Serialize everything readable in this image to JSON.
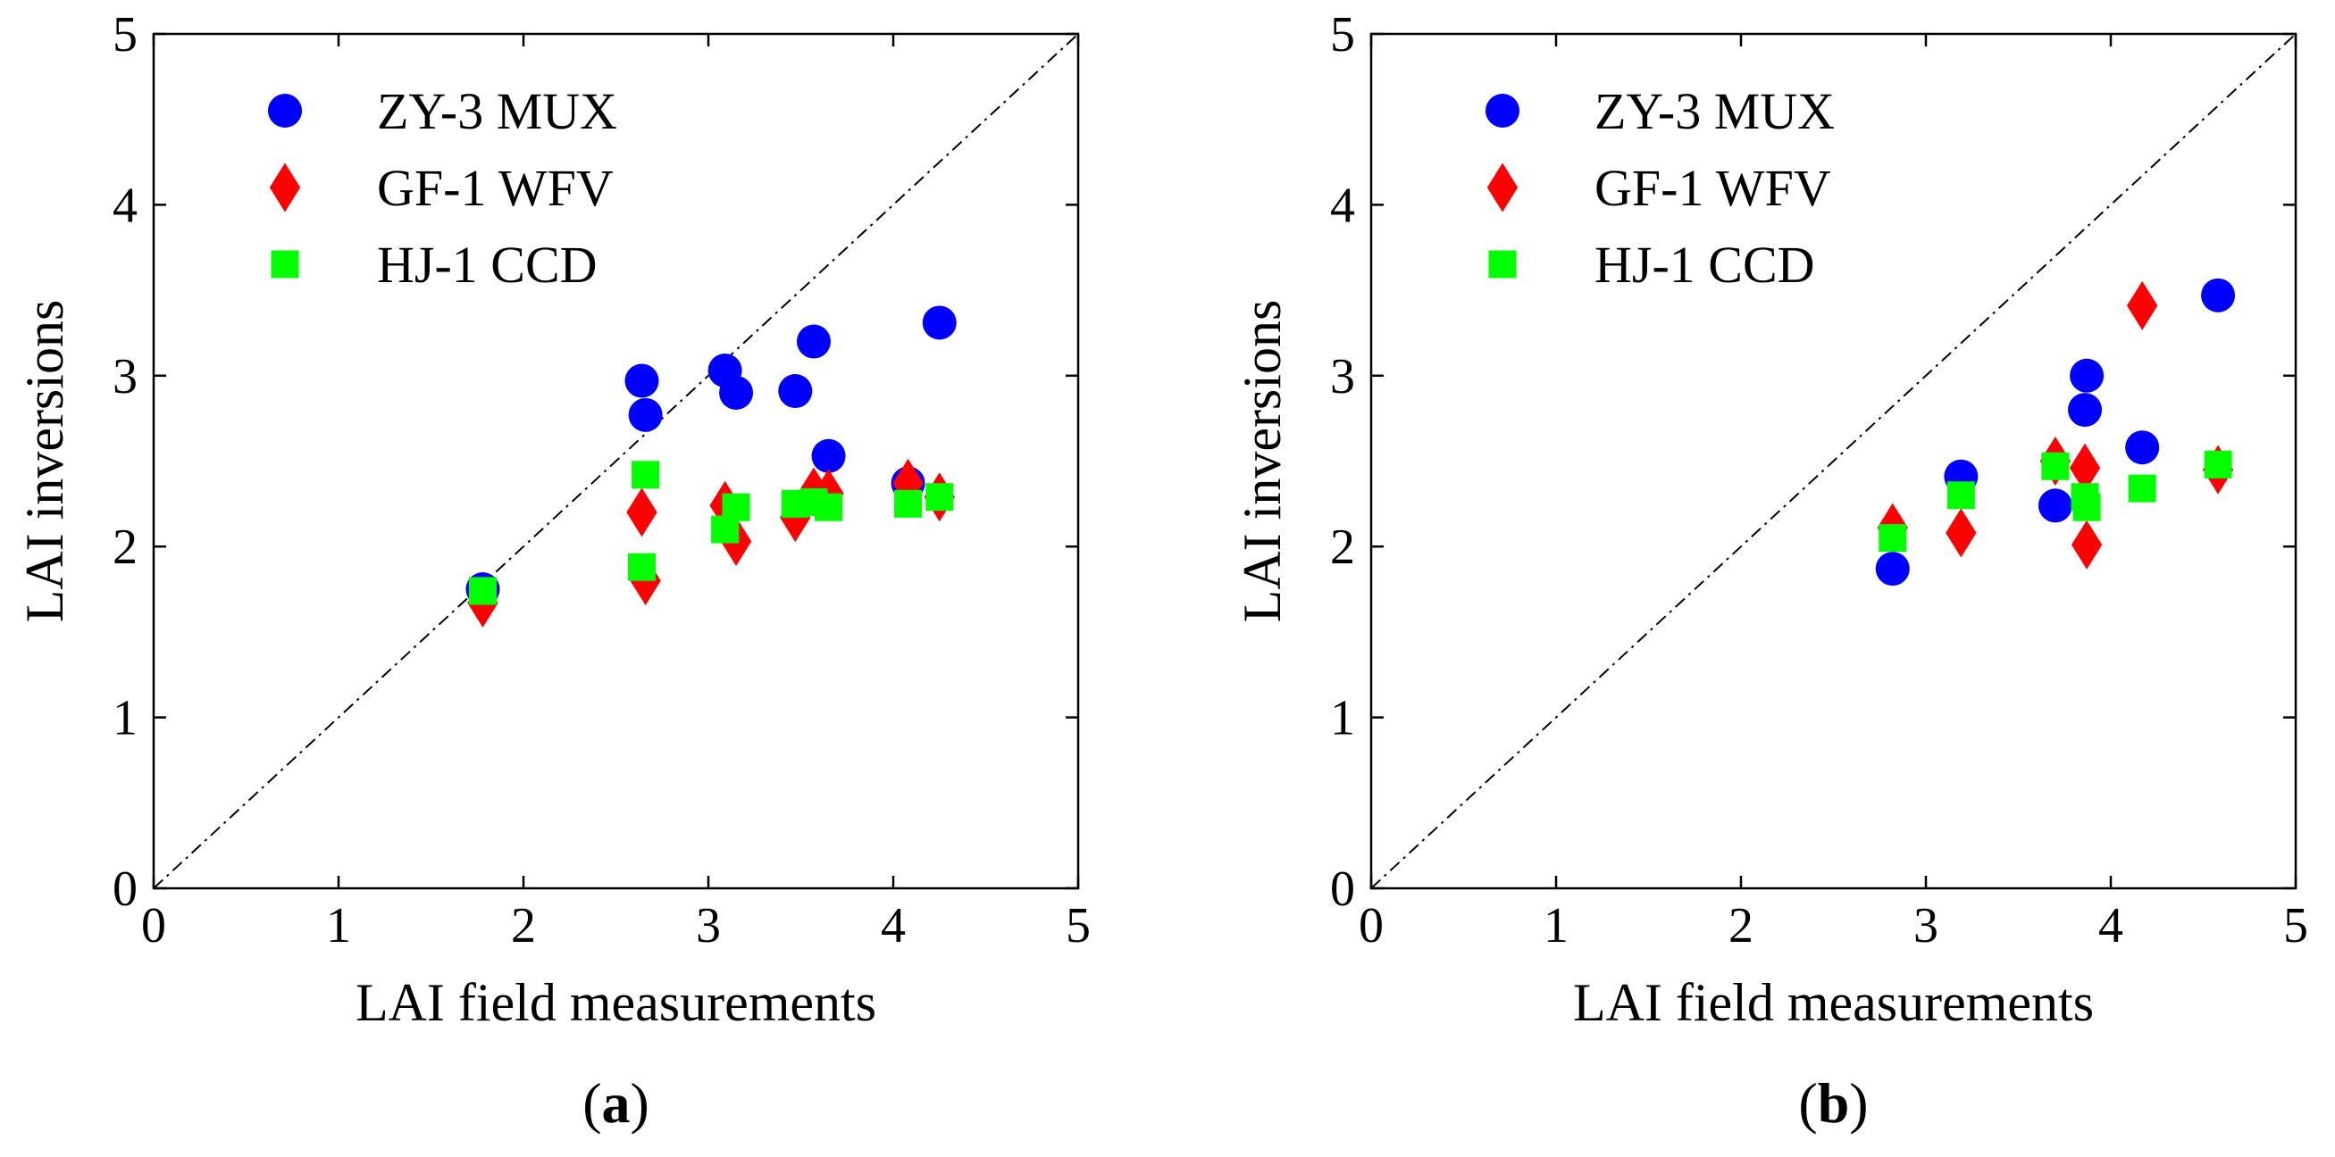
{
  "colors": {
    "zy3": "#0000ff",
    "gf1": "#ff0000",
    "hj1": "#00ff00",
    "axis": "#000000",
    "diagonal": "#000000"
  },
  "chart_data": [
    {
      "type": "scatter",
      "panel_label": {
        "open": "(",
        "letter": "a",
        "close": ")"
      },
      "xlabel": "LAI field measurements",
      "ylabel": "LAI inversions",
      "xlim": [
        0,
        5
      ],
      "ylim": [
        0,
        5
      ],
      "xticks": [
        "0",
        "1",
        "2",
        "3",
        "4",
        "5"
      ],
      "yticks": [
        "0",
        "1",
        "2",
        "3",
        "4",
        "5"
      ],
      "reference_line": "1:1",
      "legend_position": "top-left",
      "series": [
        {
          "key": "zy3",
          "name": "ZY-3 MUX",
          "marker": "circle",
          "x": [
            1.78,
            2.64,
            2.66,
            3.09,
            3.15,
            3.47,
            3.57,
            3.65,
            4.08,
            4.25
          ],
          "y": [
            1.75,
            2.97,
            2.77,
            3.03,
            2.9,
            2.91,
            3.2,
            2.53,
            2.37,
            3.31
          ]
        },
        {
          "key": "gf1",
          "name": "GF-1 WFV",
          "marker": "diamond",
          "x": [
            1.78,
            2.64,
            2.66,
            3.09,
            3.15,
            3.47,
            3.57,
            3.65,
            4.08,
            4.25
          ],
          "y": [
            1.67,
            2.2,
            1.8,
            2.24,
            2.03,
            2.17,
            2.32,
            2.31,
            2.37,
            2.29
          ]
        },
        {
          "key": "hj1",
          "name": "HJ-1 CCD",
          "marker": "square",
          "x": [
            1.78,
            2.64,
            2.66,
            3.09,
            3.15,
            3.47,
            3.57,
            3.65,
            4.08,
            4.25
          ],
          "y": [
            1.74,
            1.88,
            2.42,
            2.1,
            2.23,
            2.25,
            2.26,
            2.23,
            2.25,
            2.29
          ]
        }
      ]
    },
    {
      "type": "scatter",
      "panel_label": {
        "open": "(",
        "letter": "b",
        "close": ")"
      },
      "xlabel": "LAI field measurements",
      "ylabel": "LAI inversions",
      "xlim": [
        0,
        5
      ],
      "ylim": [
        0,
        5
      ],
      "xticks": [
        "0",
        "1",
        "2",
        "3",
        "4",
        "5"
      ],
      "yticks": [
        "0",
        "1",
        "2",
        "3",
        "4",
        "5"
      ],
      "reference_line": "1:1",
      "legend_position": "top-left",
      "series": [
        {
          "key": "zy3",
          "name": "ZY-3 MUX",
          "marker": "circle",
          "x": [
            2.82,
            3.19,
            3.7,
            3.86,
            3.87,
            4.17,
            4.58
          ],
          "y": [
            1.87,
            2.41,
            2.24,
            2.8,
            3.0,
            2.58,
            3.47
          ]
        },
        {
          "key": "gf1",
          "name": "GF-1 WFV",
          "marker": "diamond",
          "x": [
            2.82,
            3.19,
            3.7,
            3.86,
            3.87,
            4.17,
            4.58
          ],
          "y": [
            2.11,
            2.08,
            2.5,
            2.46,
            2.01,
            3.41,
            2.45
          ]
        },
        {
          "key": "hj1",
          "name": "HJ-1 CCD",
          "marker": "square",
          "x": [
            2.82,
            3.19,
            3.7,
            3.86,
            3.87,
            4.17,
            4.58
          ],
          "y": [
            2.05,
            2.3,
            2.47,
            2.29,
            2.23,
            2.34,
            2.48
          ]
        }
      ]
    }
  ]
}
